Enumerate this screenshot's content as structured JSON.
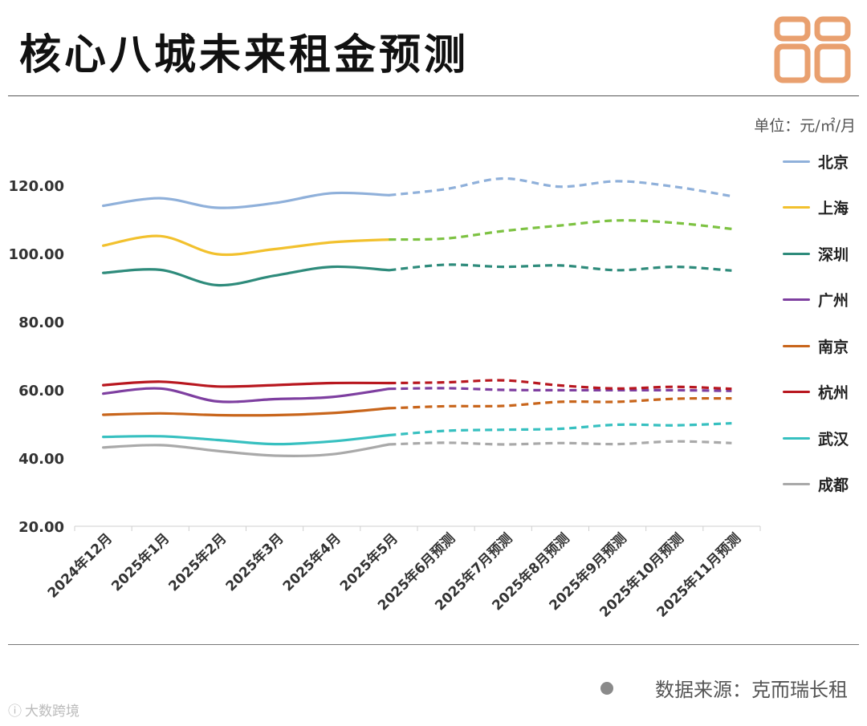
{
  "header": {
    "title": "核心八城未来租金预测",
    "unit": "单位：元/㎡/月",
    "logo_color": "#E9A06F"
  },
  "footer": {
    "source": "数据来源：克而瑞长租",
    "credit": "大数跨境",
    "credit_icon": "ic-logo-icon"
  },
  "chart_data": {
    "type": "line",
    "title": "核心八城未来租金预测",
    "unit": "元/㎡/月",
    "categories": [
      "2024年12月",
      "2025年1月",
      "2025年2月",
      "2025年3月",
      "2025年4月",
      "2025年5月",
      "2025年6月预测",
      "2025年7月预测",
      "2025年8月预测",
      "2025年9月预测",
      "2025年10月预测",
      "2025年11月预测"
    ],
    "actual_count": 6,
    "ylim": [
      20,
      120
    ],
    "yticks": [
      "20.00",
      "40.00",
      "60.00",
      "80.00",
      "100.00",
      "120.00"
    ],
    "legend_position": "right",
    "grid": false,
    "series": [
      {
        "name": "北京",
        "color": "#8FB0DA",
        "forecast_color": "#8FB0DA",
        "values": [
          114.0,
          116.2,
          113.4,
          114.8,
          117.7,
          117.1,
          118.9,
          122.0,
          119.6,
          121.2,
          119.6,
          116.8
        ]
      },
      {
        "name": "上海",
        "color": "#F2C12E",
        "forecast_color": "#7DC242",
        "values": [
          102.3,
          105.1,
          99.8,
          101.3,
          103.3,
          104.1,
          104.4,
          106.6,
          108.2,
          109.7,
          109.0,
          107.2
        ]
      },
      {
        "name": "深圳",
        "color": "#2E8B7B",
        "forecast_color": "#2E8B7B",
        "values": [
          94.3,
          95.2,
          90.7,
          93.5,
          96.1,
          95.1,
          96.7,
          96.1,
          96.5,
          95.1,
          96.1,
          95.0
        ]
      },
      {
        "name": "广州",
        "color": "#7E3FA0",
        "forecast_color": "#7E3FA0",
        "values": [
          58.9,
          60.4,
          56.6,
          57.3,
          57.9,
          60.3,
          60.5,
          60.0,
          59.9,
          59.9,
          59.9,
          59.7
        ]
      },
      {
        "name": "南京",
        "color": "#C8651B",
        "forecast_color": "#C8651B",
        "values": [
          52.7,
          53.1,
          52.6,
          52.6,
          53.2,
          54.6,
          55.2,
          55.3,
          56.5,
          56.5,
          57.4,
          57.5
        ]
      },
      {
        "name": "杭州",
        "color": "#B8171F",
        "forecast_color": "#B8171F",
        "values": [
          61.4,
          62.4,
          61.0,
          61.4,
          62.0,
          62.0,
          62.2,
          62.8,
          61.3,
          60.4,
          60.9,
          60.3
        ]
      },
      {
        "name": "武汉",
        "color": "#37C0C0",
        "forecast_color": "#37C0C0",
        "values": [
          46.2,
          46.4,
          45.3,
          44.1,
          44.9,
          46.7,
          48.0,
          48.3,
          48.6,
          49.8,
          49.6,
          50.2
        ]
      },
      {
        "name": "成都",
        "color": "#A9A9A9",
        "forecast_color": "#A9A9A9",
        "values": [
          43.1,
          43.8,
          42.1,
          40.7,
          41.1,
          44.0,
          44.5,
          44.0,
          44.4,
          44.1,
          44.9,
          44.4
        ]
      }
    ]
  }
}
